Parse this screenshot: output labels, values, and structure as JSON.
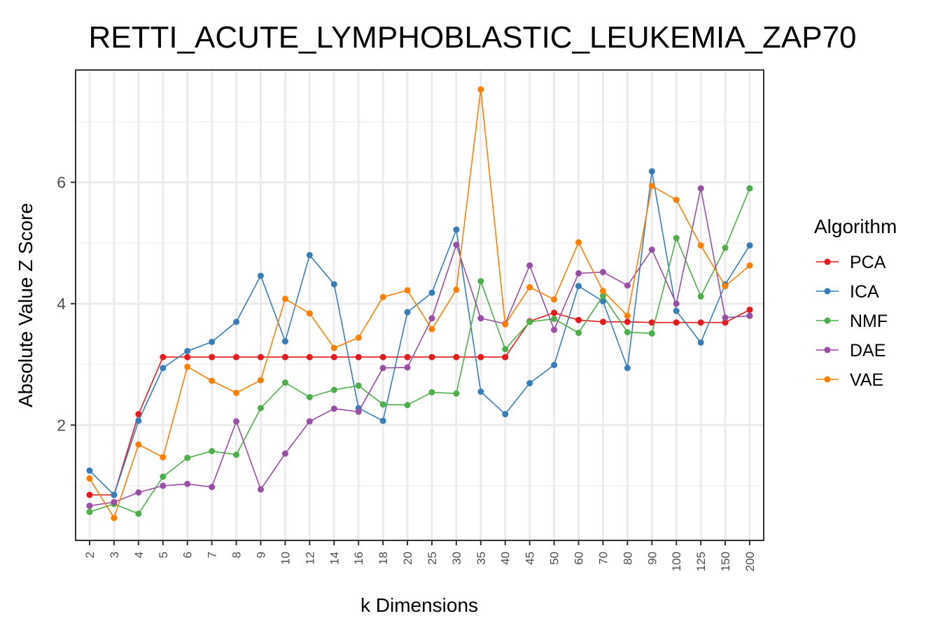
{
  "chart_data": {
    "type": "line",
    "title": "RETTI_ACUTE_LYMPHOBLASTIC_LEUKEMIA_ZAP70",
    "xlabel": "k Dimensions",
    "ylabel": "Absolute Value Z Score",
    "categories": [
      "2",
      "3",
      "4",
      "5",
      "6",
      "7",
      "8",
      "9",
      "10",
      "12",
      "14",
      "16",
      "18",
      "20",
      "25",
      "30",
      "35",
      "40",
      "45",
      "50",
      "60",
      "70",
      "80",
      "90",
      "100",
      "125",
      "150",
      "200"
    ],
    "yticks": [
      2,
      4,
      6
    ],
    "ylim": [
      0.1,
      7.85
    ],
    "grid": true,
    "legend": {
      "title": "Algorithm",
      "position": "right"
    },
    "series": [
      {
        "name": "PCA",
        "color": "#E41A1C",
        "values": [
          0.85,
          0.85,
          2.18,
          3.12,
          3.12,
          3.12,
          3.12,
          3.12,
          3.12,
          3.12,
          3.12,
          3.12,
          3.12,
          3.12,
          3.12,
          3.12,
          3.12,
          3.12,
          3.71,
          3.85,
          3.73,
          3.7,
          3.7,
          3.69,
          3.69,
          3.69,
          3.69,
          3.9
        ]
      },
      {
        "name": "ICA",
        "color": "#377EB8",
        "values": [
          1.25,
          0.85,
          2.07,
          2.94,
          3.22,
          3.37,
          3.7,
          4.46,
          3.38,
          4.8,
          4.32,
          2.28,
          2.07,
          3.86,
          4.18,
          5.22,
          2.55,
          2.18,
          2.69,
          2.99,
          4.29,
          4.04,
          2.94,
          6.18,
          3.88,
          3.36,
          4.32,
          4.96
        ]
      },
      {
        "name": "NMF",
        "color": "#4DAF4A",
        "values": [
          0.57,
          0.7,
          0.54,
          1.15,
          1.46,
          1.57,
          1.51,
          2.28,
          2.7,
          2.46,
          2.58,
          2.65,
          2.34,
          2.33,
          2.54,
          2.52,
          4.37,
          3.25,
          3.7,
          3.75,
          3.52,
          4.13,
          3.53,
          3.51,
          5.08,
          4.12,
          4.92,
          5.9
        ]
      },
      {
        "name": "DAE",
        "color": "#984EA3",
        "values": [
          0.67,
          0.73,
          0.89,
          1.0,
          1.03,
          0.98,
          2.06,
          0.94,
          1.53,
          2.06,
          2.27,
          2.22,
          2.94,
          2.95,
          3.76,
          4.97,
          3.76,
          3.67,
          4.63,
          3.57,
          4.5,
          4.52,
          4.3,
          4.89,
          4.0,
          5.9,
          3.77,
          3.8
        ]
      },
      {
        "name": "VAE",
        "color": "#FF7F00",
        "values": [
          1.12,
          0.47,
          1.68,
          1.47,
          2.96,
          2.73,
          2.53,
          2.74,
          4.08,
          3.84,
          3.27,
          3.44,
          4.11,
          4.22,
          3.58,
          4.23,
          7.53,
          3.66,
          4.27,
          4.07,
          5.01,
          4.21,
          3.8,
          5.94,
          5.71,
          4.96,
          4.29,
          4.63
        ]
      }
    ]
  }
}
